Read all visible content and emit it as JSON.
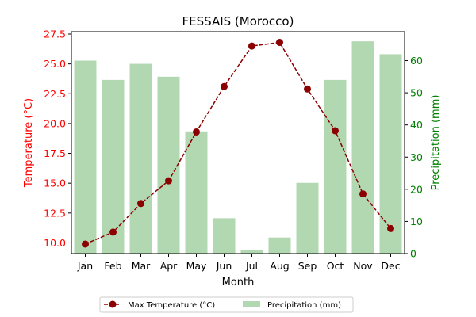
{
  "chart_data": {
    "type": "bar+line",
    "title": "FESSAIS (Morocco)",
    "xlabel": "Month",
    "ylabel_left": "Temperature (°C)",
    "ylabel_right": "Precipitation (mm)",
    "categories": [
      "Jan",
      "Feb",
      "Mar",
      "Apr",
      "May",
      "Jun",
      "Jul",
      "Aug",
      "Sep",
      "Oct",
      "Nov",
      "Dec"
    ],
    "temperature": {
      "name": "Max Temperature (°C)",
      "values": [
        9.9,
        10.9,
        13.3,
        15.2,
        19.3,
        23.1,
        26.5,
        26.8,
        22.9,
        19.4,
        14.1,
        11.2
      ],
      "ylim": [
        9.1,
        27.7
      ],
      "ticks": [
        "10.0",
        "12.5",
        "15.0",
        "17.5",
        "20.0",
        "22.5",
        "25.0",
        "27.5"
      ],
      "color": "#8b0000",
      "axis_color": "#ff0000"
    },
    "precipitation": {
      "name": "Precipitation (mm)",
      "values": [
        60,
        54,
        59,
        55,
        38,
        11,
        1,
        5,
        22,
        54,
        66,
        62
      ],
      "ylim": [
        0,
        69
      ],
      "ticks": [
        "0",
        "10",
        "20",
        "30",
        "40",
        "50",
        "60"
      ],
      "color": "#b2d8b2",
      "axis_color": "#008000"
    },
    "grid": false,
    "legend_position": "bottom-center"
  }
}
